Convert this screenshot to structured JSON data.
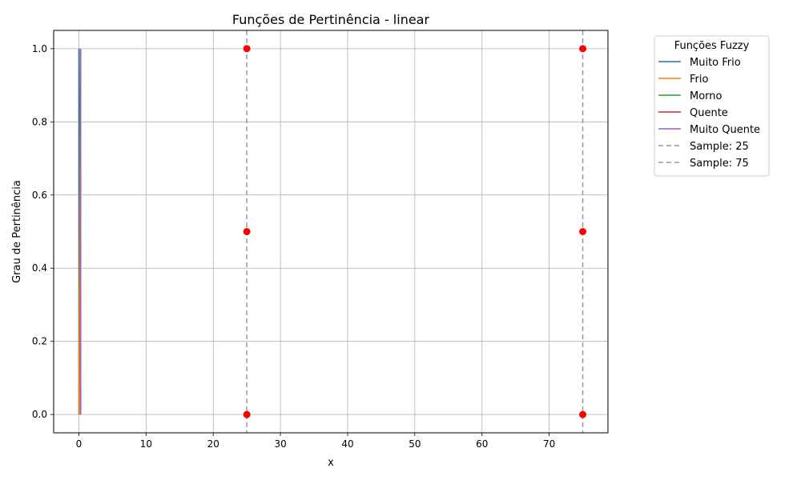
{
  "chart_data": {
    "type": "line",
    "title": "Funções de Pertinência - linear",
    "xlabel": "x",
    "ylabel": "Grau de Pertinência",
    "xlim": [
      -3.75,
      78.75
    ],
    "ylim": [
      -0.05,
      1.05
    ],
    "xticks": [
      "0",
      "10",
      "20",
      "30",
      "40",
      "50",
      "60",
      "70"
    ],
    "yticks": [
      "0.0",
      "0.2",
      "0.4",
      "0.6",
      "0.8",
      "1.0"
    ],
    "grid": true,
    "legend": {
      "title": "Funções Fuzzy",
      "placement": "outside-top-right"
    },
    "series": [
      {
        "name": "Muito Frio",
        "color": "#1f77b4",
        "x": [
          0,
          0,
          0.25
        ],
        "y": [
          0,
          1,
          0
        ]
      },
      {
        "name": "Frio",
        "color": "#ff7f0e",
        "x": [
          0,
          0.25,
          0.25
        ],
        "y": [
          0,
          1,
          0
        ]
      },
      {
        "name": "Morno",
        "color": "#2ca02c",
        "x": [
          0.25,
          0.25,
          0.25
        ],
        "y": [
          0,
          1,
          0
        ]
      },
      {
        "name": "Quente",
        "color": "#d62728",
        "x": [
          0.25,
          0.25,
          0.25
        ],
        "y": [
          0,
          1,
          0
        ]
      },
      {
        "name": "Muito Quente",
        "color": "#9467bd",
        "x": [
          0.25,
          0.25,
          0.25
        ],
        "y": [
          0,
          1,
          0
        ]
      }
    ],
    "samples": [
      {
        "name": "Sample: 25",
        "x": 25,
        "color": "#999999"
      },
      {
        "name": "Sample: 75",
        "x": 75,
        "color": "#999999"
      }
    ],
    "markers": {
      "color": "#ff0000",
      "points": [
        {
          "x": 25,
          "y": 1.0
        },
        {
          "x": 25,
          "y": 0.5
        },
        {
          "x": 25,
          "y": 0.0
        },
        {
          "x": 75,
          "y": 1.0
        },
        {
          "x": 75,
          "y": 0.5
        },
        {
          "x": 75,
          "y": 0.0
        }
      ]
    }
  }
}
